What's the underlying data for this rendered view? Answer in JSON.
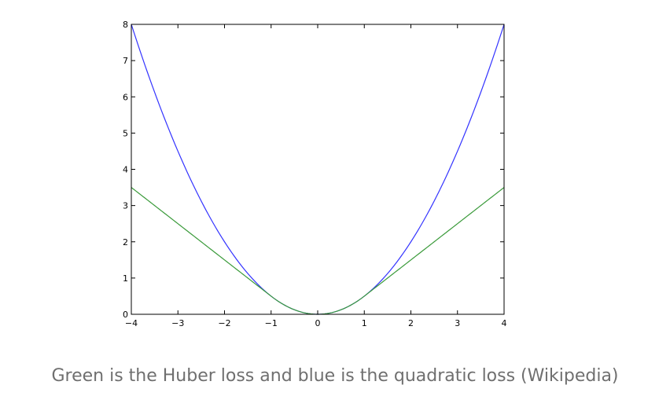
{
  "caption": "Green is the Huber loss and blue is the quadratic loss (Wikipedia)",
  "chart_data": {
    "type": "line",
    "title": "",
    "xlabel": "",
    "ylabel": "",
    "xlim": [
      -4,
      4
    ],
    "ylim": [
      0,
      8
    ],
    "grid": false,
    "x_ticks": [
      -4,
      -3,
      -2,
      -1,
      0,
      1,
      2,
      3,
      4
    ],
    "y_ticks": [
      0,
      1,
      2,
      3,
      4,
      5,
      6,
      7,
      8
    ],
    "x_tick_labels": [
      "−4",
      "−3",
      "−2",
      "−1",
      "0",
      "1",
      "2",
      "3",
      "4"
    ],
    "y_tick_labels": [
      "0",
      "1",
      "2",
      "3",
      "4",
      "5",
      "6",
      "7",
      "8"
    ],
    "series": [
      {
        "color": "#3333ff",
        "x": [
          -4,
          -3.5,
          -3,
          -2.5,
          -2,
          -1.5,
          -1,
          -0.5,
          0,
          0.5,
          1,
          1.5,
          2,
          2.5,
          3,
          3.5,
          4
        ],
        "y": [
          8,
          6.125,
          4.5,
          3.125,
          2,
          1.125,
          0.5,
          0.125,
          0,
          0.125,
          0.5,
          1.125,
          2,
          3.125,
          4.5,
          6.125,
          8
        ]
      },
      {
        "color": "#3a9a3a",
        "x": [
          -4,
          -3.5,
          -3,
          -2.5,
          -2,
          -1.5,
          -1,
          -0.5,
          0,
          0.5,
          1,
          1.5,
          2,
          2.5,
          3,
          3.5,
          4
        ],
        "y": [
          3.5,
          3,
          2.5,
          2,
          1.5,
          1,
          0.5,
          0.125,
          0,
          0.125,
          0.5,
          1,
          1.5,
          2,
          2.5,
          3,
          3.5
        ]
      }
    ]
  }
}
